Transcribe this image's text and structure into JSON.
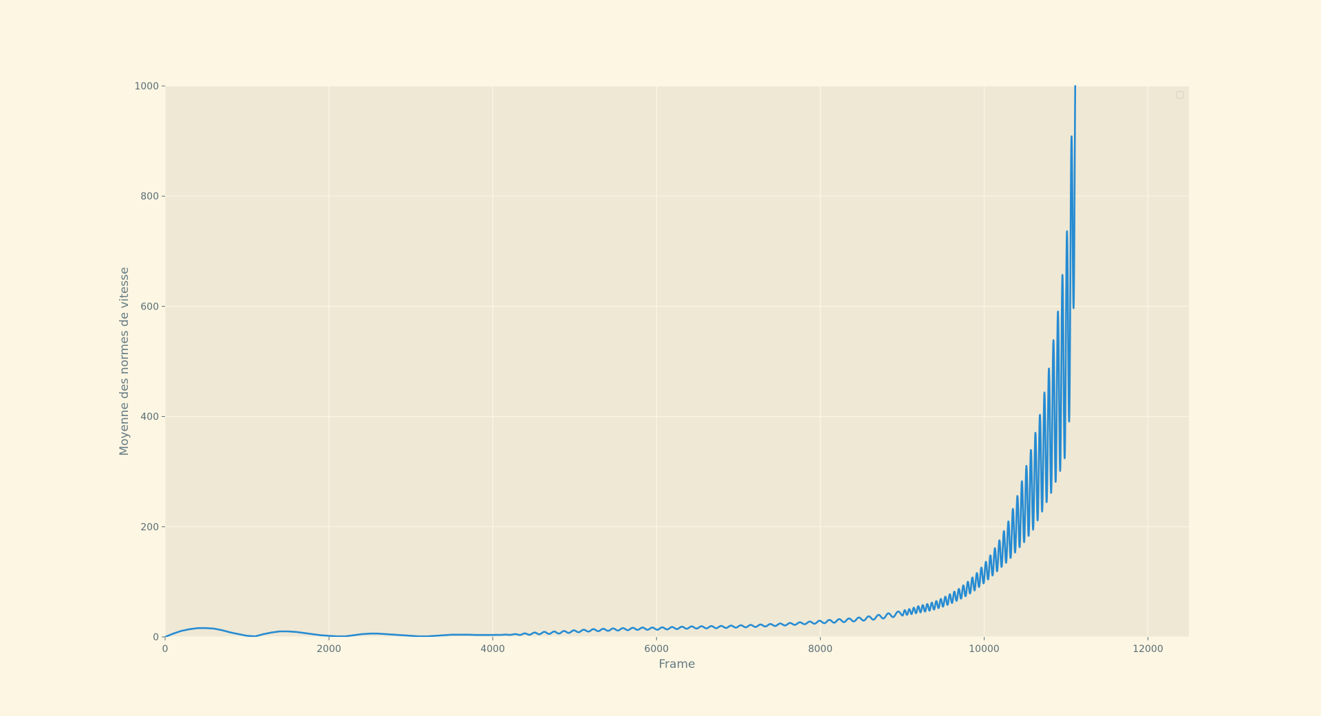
{
  "colors": {
    "figure_background": "#fdf6e3",
    "plot_background": "#eee8d5",
    "grid": "#fdf6e3",
    "line": "#268bd2",
    "text": "#657b83",
    "tick_text": "#586e75"
  },
  "chart_data": {
    "type": "line",
    "xlabel": "Frame",
    "ylabel": "Moyenne des normes de vitesse",
    "xlim": [
      0,
      12500
    ],
    "ylim": [
      0,
      1000
    ],
    "xticks": [
      0,
      2000,
      4000,
      6000,
      8000,
      10000,
      12000
    ],
    "yticks": [
      0,
      200,
      400,
      600,
      800,
      1000
    ],
    "grid": true,
    "legend": "top-right (empty)",
    "series": [
      {
        "color": "#268bd2",
        "x": [
          0,
          100,
          200,
          300,
          400,
          500,
          600,
          700,
          800,
          900,
          1000,
          1100,
          1200,
          1300,
          1400,
          1500,
          1600,
          1700,
          1800,
          1900,
          2000,
          2100,
          2200,
          2300,
          2400,
          2500,
          2600,
          2700,
          2800,
          2900,
          3000,
          3100,
          3200,
          3300,
          3400,
          3500,
          3600,
          3700,
          3800,
          3900,
          4000,
          4200,
          4400,
          4600,
          4800,
          5000,
          5200,
          5400,
          5600,
          5800,
          6000,
          6200,
          6400,
          6600,
          6800,
          7000,
          7200,
          7400,
          7600,
          7800,
          8000,
          8200,
          8400,
          8600,
          8800,
          9000,
          9100,
          9200,
          9300,
          9400,
          9500,
          9600,
          9700,
          9800,
          9900,
          10000,
          10100,
          10200,
          10300,
          10400,
          10500,
          10600,
          10700,
          10800,
          10900,
          11000,
          11050,
          11100,
          11130
        ],
        "y": [
          0,
          6,
          11,
          14,
          16,
          16,
          15,
          12,
          8,
          5,
          2,
          1,
          5,
          8,
          10,
          10,
          9,
          7,
          5,
          3,
          2,
          1,
          1,
          3,
          5,
          6,
          6,
          5,
          4,
          3,
          2,
          1,
          1,
          2,
          3,
          4,
          4,
          4,
          3.5,
          3.5,
          3.5,
          4,
          5,
          7,
          8,
          10,
          12,
          13,
          14,
          15,
          15,
          16,
          17,
          17.5,
          18,
          19,
          20,
          21.5,
          23,
          25,
          27,
          29,
          31,
          34,
          38,
          43,
          46,
          50,
          53,
          57,
          63,
          70,
          78,
          88,
          100,
          115,
          132,
          152,
          175,
          205,
          238,
          275,
          320,
          375,
          440,
          520,
          620,
          850,
          1000
        ],
        "amplitude": [
          0,
          0,
          0,
          0,
          0,
          0,
          0,
          0,
          0,
          0,
          0,
          0,
          0,
          0,
          0,
          0,
          0,
          0,
          0,
          0,
          0,
          0,
          0,
          0,
          0,
          0,
          0,
          0,
          0,
          0,
          0,
          0,
          0,
          0,
          0,
          0,
          0,
          0,
          0,
          0,
          0,
          0.3,
          1.5,
          2,
          2,
          2,
          2,
          2,
          2,
          2,
          2,
          2,
          2,
          2,
          2,
          2,
          2,
          2,
          2,
          2,
          2.5,
          3,
          3,
          3.5,
          4,
          4.5,
          5,
          6,
          6.5,
          7,
          8,
          9,
          10,
          12,
          14,
          17,
          21,
          27,
          36,
          48,
          64,
          80,
          95,
          120,
          150,
          190,
          210,
          220,
          80
        ]
      }
    ]
  }
}
